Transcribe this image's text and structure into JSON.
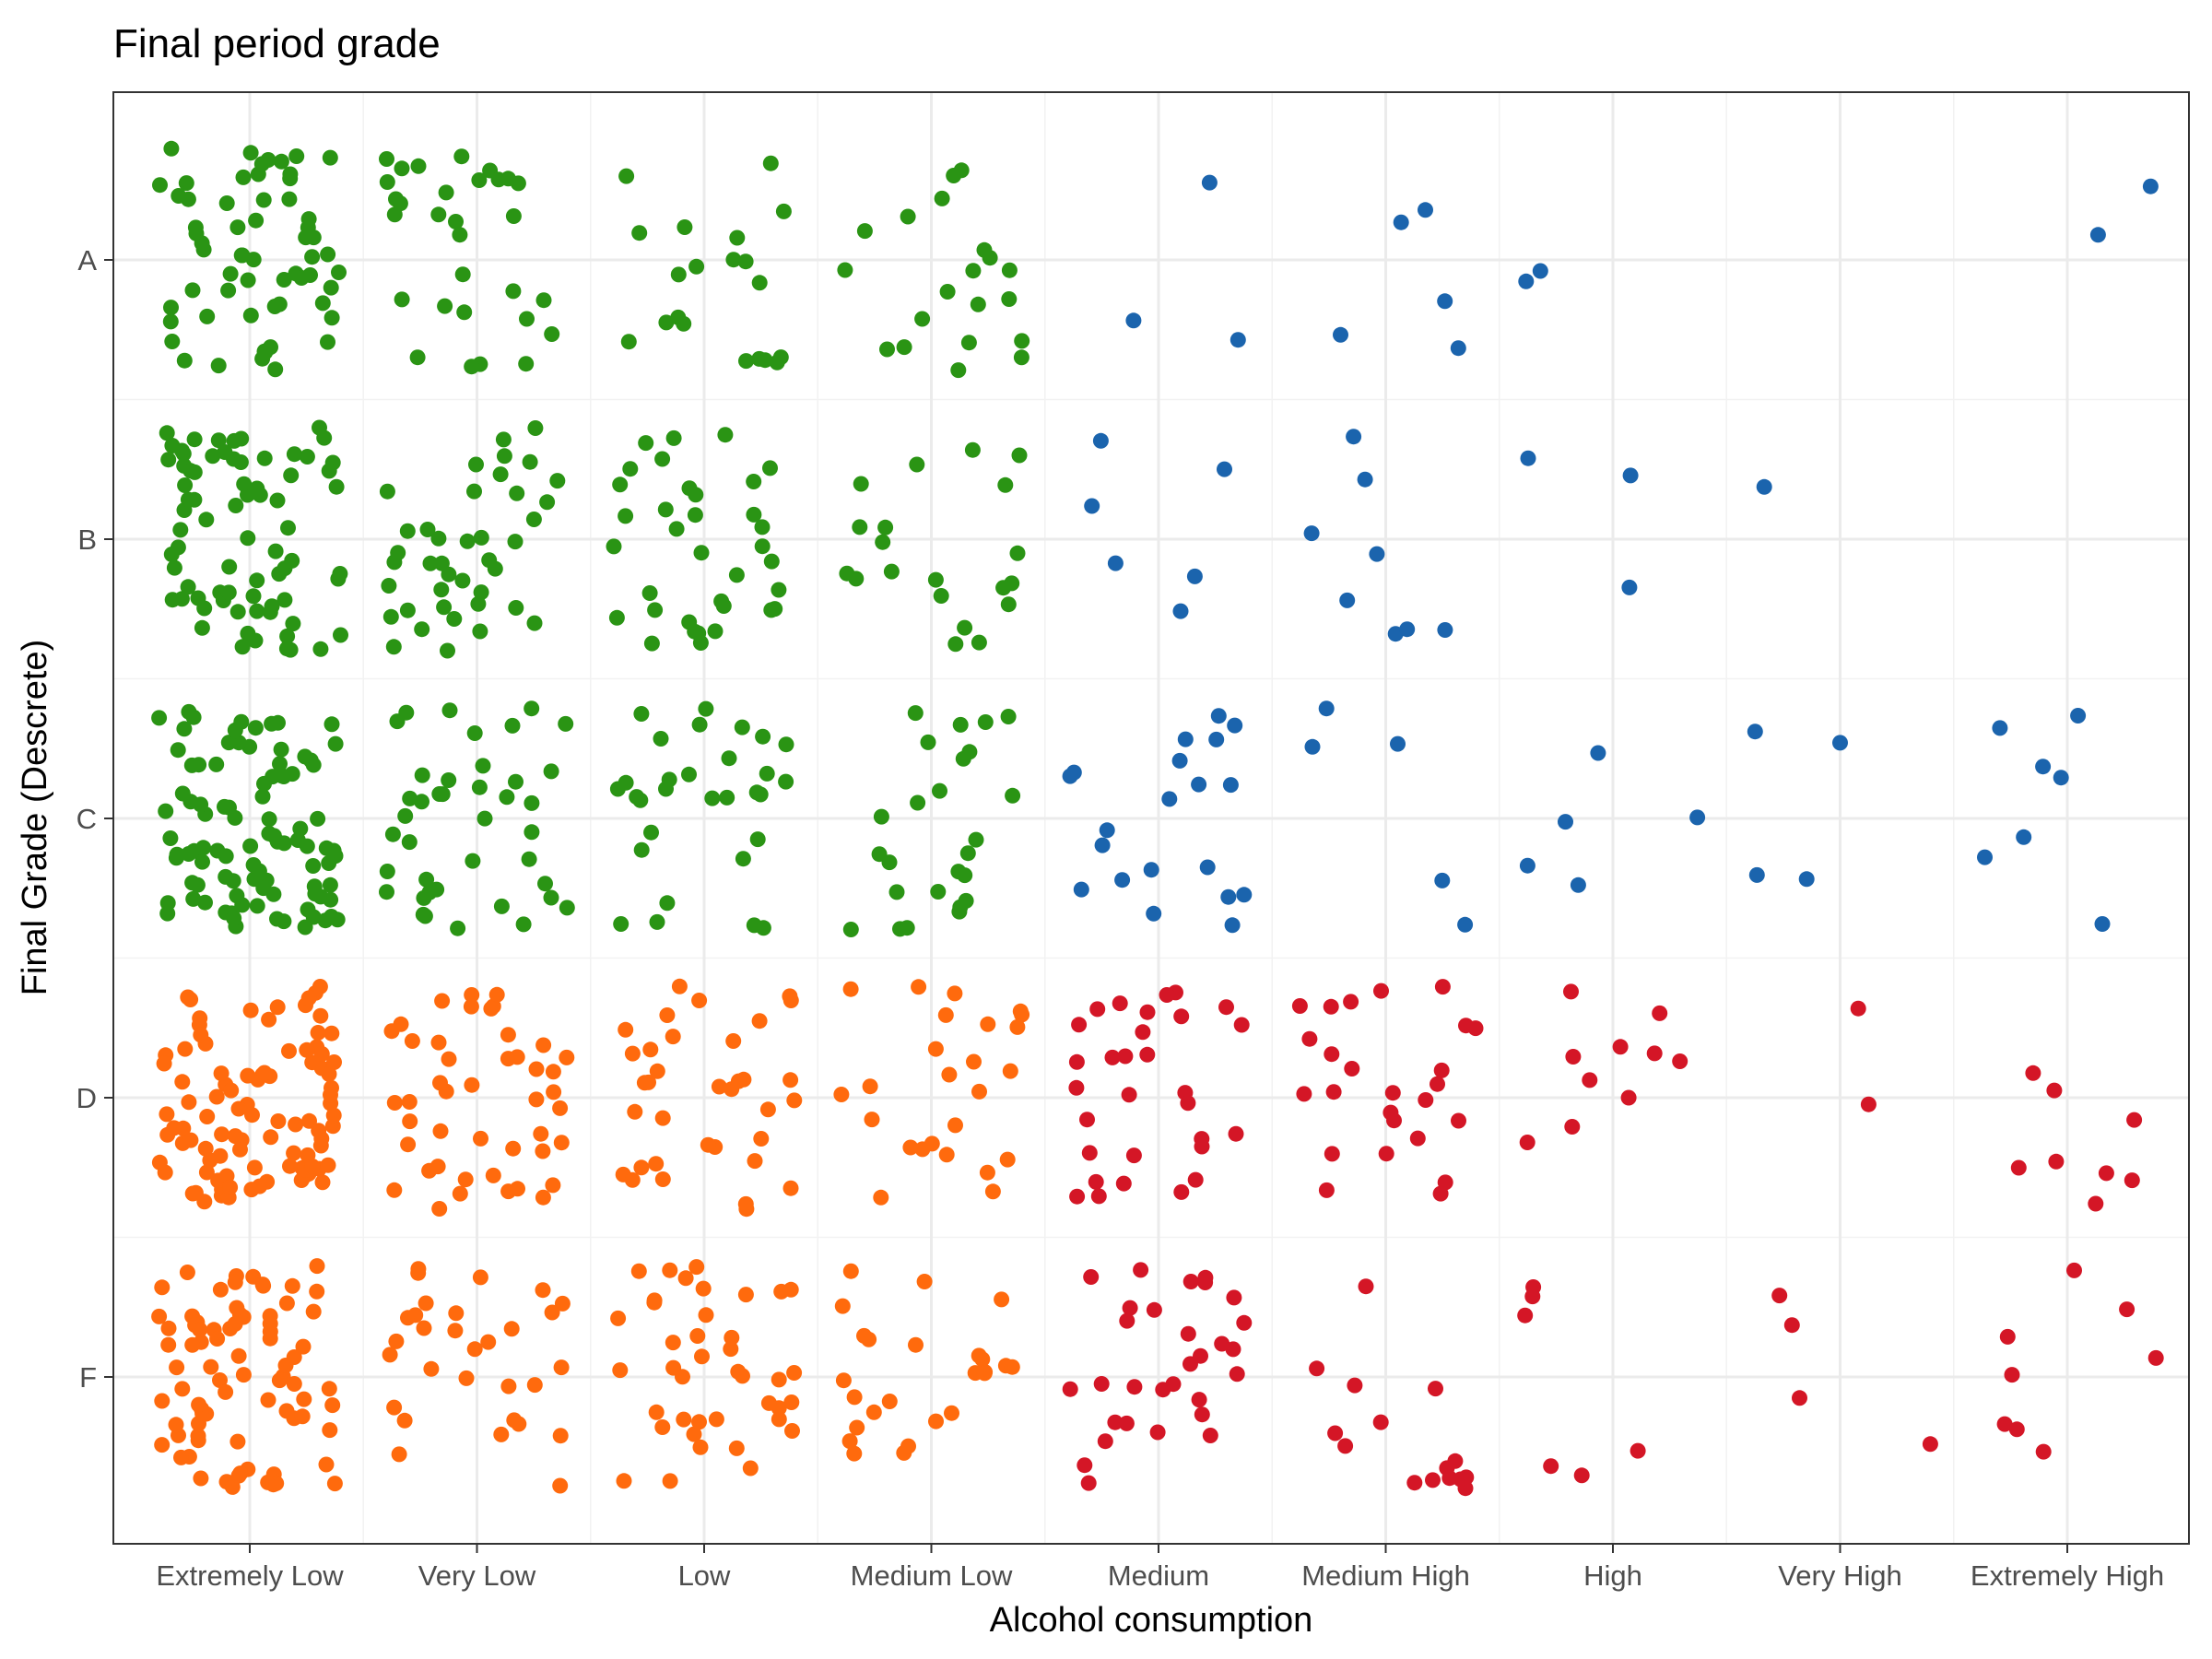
{
  "chart_data": {
    "type": "scatter",
    "title": "Final period grade",
    "xlabel": "Alcohol consumption",
    "ylabel": "Final Grade (Descrete)",
    "categories": [
      "Extremely Low",
      "Very Low",
      "Low",
      "Medium Low",
      "Medium",
      "Medium High",
      "High",
      "Very High",
      "Extremely High"
    ],
    "y_categories": [
      "F",
      "D",
      "C",
      "B",
      "A"
    ],
    "grid": true,
    "legend": "none",
    "jitter_width": 0.4,
    "jitter_height": 0.4,
    "colors": {
      "low_pass": "#2a9414",
      "low_fail": "#ff6a0d",
      "high_pass": "#1b64ad",
      "high_fail": "#d41626"
    },
    "counts": {
      "A": [
        60,
        30,
        20,
        20,
        3,
        5,
        2,
        0,
        2
      ],
      "B": [
        75,
        40,
        35,
        20,
        6,
        8,
        3,
        1,
        0
      ],
      "C": [
        95,
        40,
        30,
        25,
        20,
        5,
        5,
        4,
        7
      ],
      "D": [
        95,
        45,
        35,
        25,
        30,
        25,
        10,
        2,
        8
      ],
      "F": [
        80,
        30,
        40,
        25,
        30,
        15,
        6,
        4,
        8
      ]
    },
    "point_color_rule": "green = grade A-C at Extremely Low to Medium Low; orange = grade D-F at Extremely Low to Medium Low; blue = grade A-C at Medium to Extremely High; red = grade D-F at Medium to Extremely High"
  }
}
